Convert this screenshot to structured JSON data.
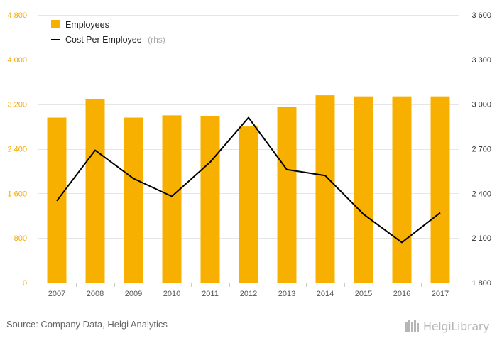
{
  "chart_data": {
    "type": "bar",
    "title": "",
    "categories": [
      "2007",
      "2008",
      "2009",
      "2010",
      "2011",
      "2012",
      "2013",
      "2014",
      "2015",
      "2016",
      "2017"
    ],
    "series": [
      {
        "name": "Employees",
        "type": "bar",
        "axis": "left",
        "color": "#f8b000",
        "values": [
          2960,
          3290,
          2960,
          3000,
          2980,
          2800,
          3150,
          3360,
          3340,
          3340,
          3340
        ]
      },
      {
        "name": "Cost Per Employee",
        "type": "line",
        "axis": "right",
        "color": "#000000",
        "values": [
          2350,
          2690,
          2500,
          2380,
          2610,
          2910,
          2560,
          2520,
          2260,
          2070,
          2270
        ]
      }
    ],
    "y_left": {
      "ylim": [
        0,
        4800
      ],
      "ticks": [
        "0",
        "800",
        "1 600",
        "2 400",
        "3 200",
        "4 000",
        "4 800"
      ]
    },
    "y_right": {
      "ylim": [
        1800,
        3600
      ],
      "ticks": [
        "1 800",
        "2 100",
        "2 400",
        "2 700",
        "3 000",
        "3 300",
        "3 600"
      ]
    },
    "legend": {
      "placement": "top-left",
      "items": [
        {
          "label": "Employees"
        },
        {
          "label": "Cost Per Employee",
          "suffix": "(rhs)"
        }
      ]
    },
    "grid": true
  },
  "footer": {
    "source": "Source: Company Data, Helgi Analytics",
    "brand": "HelgiLibrary"
  }
}
